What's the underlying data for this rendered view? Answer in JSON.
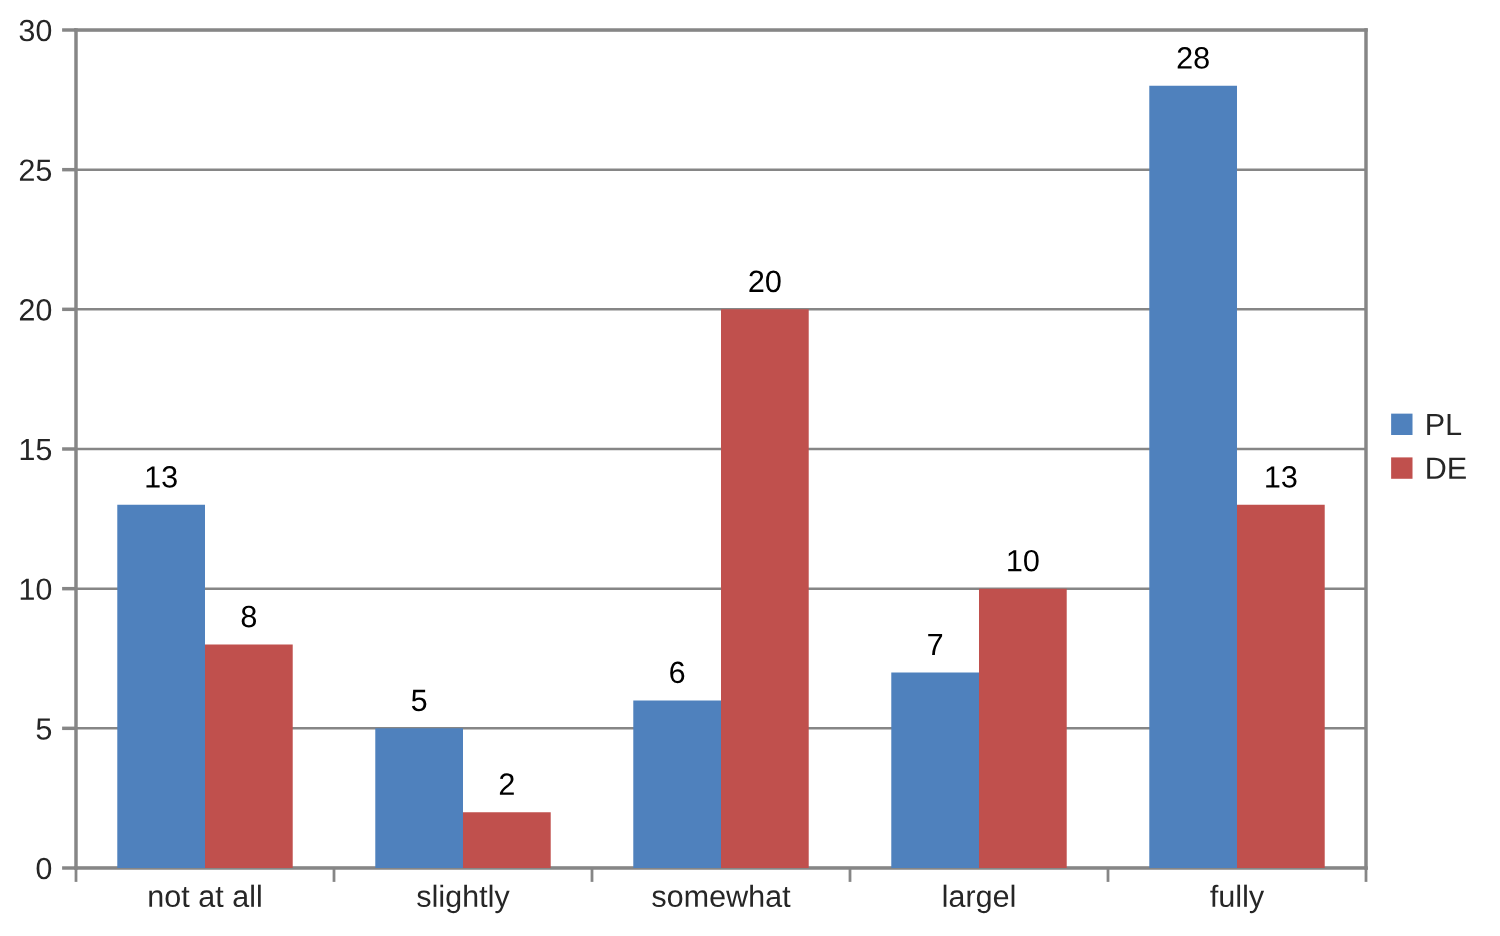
{
  "chart_data": {
    "type": "bar",
    "categories": [
      "not at all",
      "slightly",
      "somewhat",
      "largel",
      "fully"
    ],
    "series": [
      {
        "name": "PL",
        "color": "#4f81bd",
        "values": [
          13,
          5,
          6,
          7,
          28
        ]
      },
      {
        "name": "DE",
        "color": "#c0504d",
        "values": [
          8,
          2,
          20,
          10,
          13
        ]
      }
    ],
    "ylim": [
      0,
      30
    ],
    "yticks": [
      0,
      5,
      10,
      15,
      20,
      25,
      30
    ],
    "grid": "y",
    "legend": "right",
    "data_labels": true
  }
}
